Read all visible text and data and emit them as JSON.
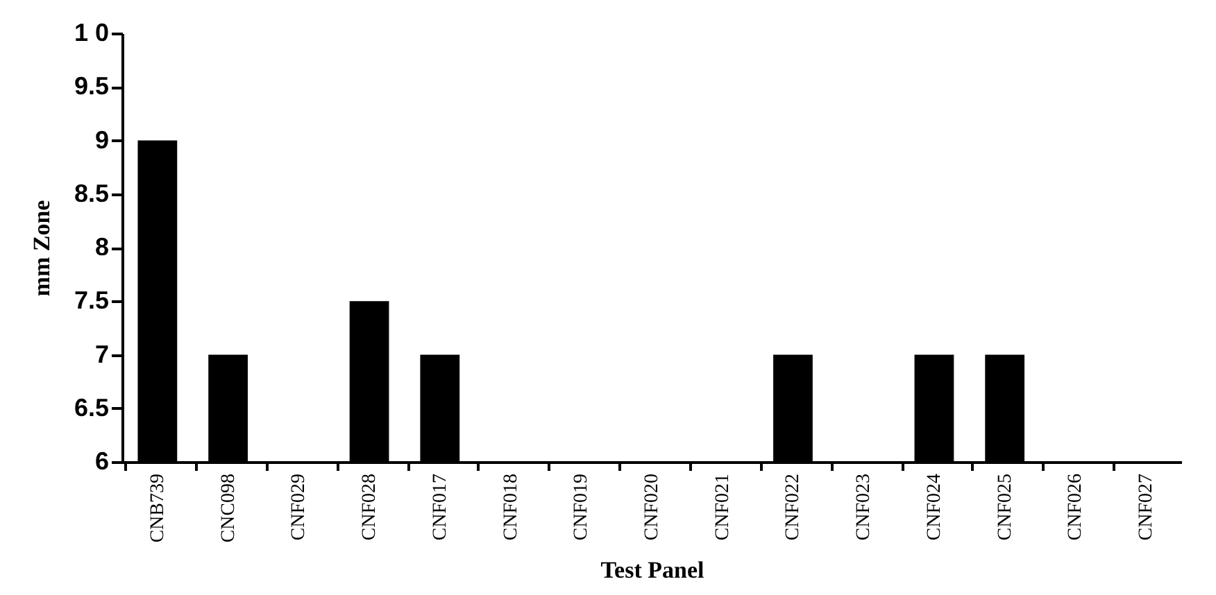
{
  "chart_data": {
    "type": "bar",
    "xlabel": "Test Panel",
    "ylabel": "mm  Zone",
    "categories": [
      "CNB739",
      "CNC098",
      "CNF029",
      "CNF028",
      "CNF017",
      "CNF018",
      "CNF019",
      "CNF020",
      "CNF021",
      "CNF022",
      "CNF023",
      "CNF024",
      "CNF025",
      "CNF026",
      "CNF027"
    ],
    "values": [
      9,
      7,
      6,
      7.5,
      7,
      6,
      6,
      6,
      6,
      7,
      6,
      7,
      7,
      6,
      6
    ],
    "color": "#000000",
    "ylim": [
      6,
      10
    ],
    "yticks": [
      6,
      6.5,
      7,
      7.5,
      8,
      8.5,
      9,
      9.5,
      {
        "value": 10,
        "label": "1 0"
      }
    ],
    "grid": false
  }
}
